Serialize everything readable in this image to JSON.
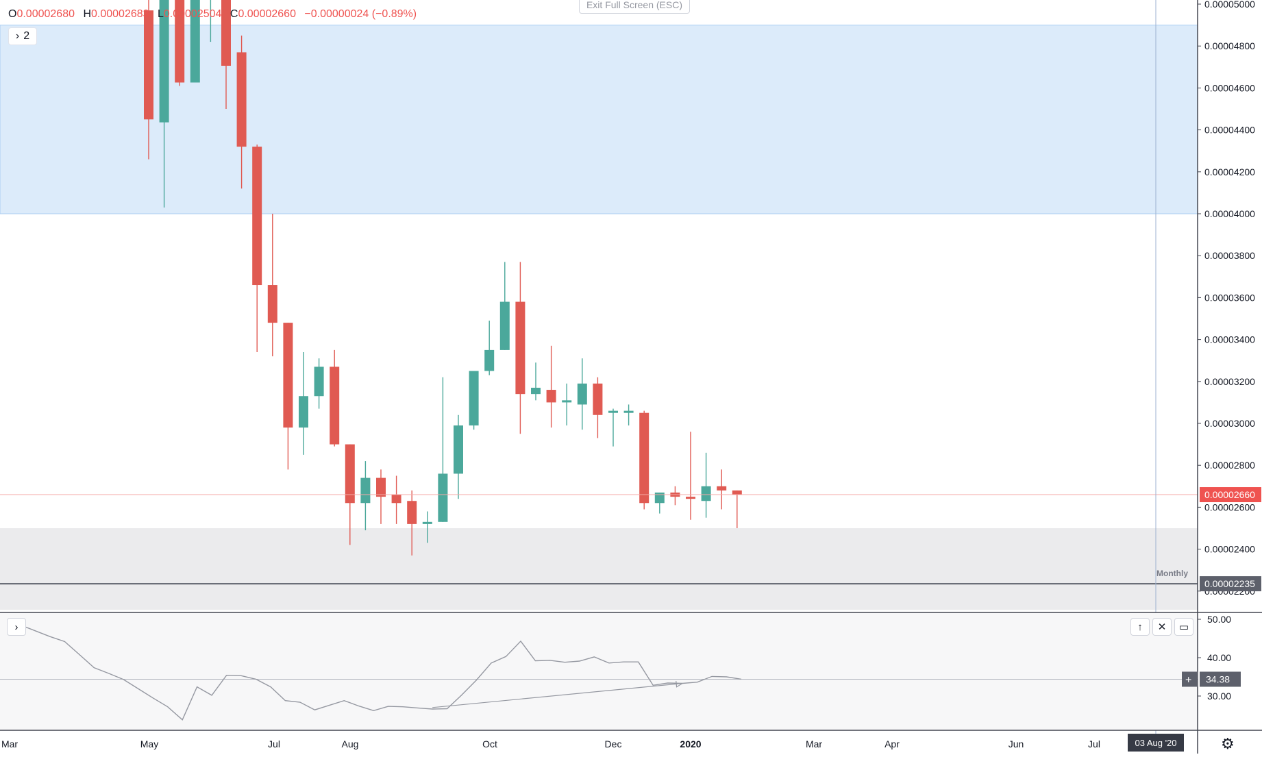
{
  "header": {
    "ohlc": [
      {
        "key": "O",
        "value": "0.00002680"
      },
      {
        "key": "H",
        "value": "0.00002683"
      },
      {
        "key": "L",
        "value": "0.00002504"
      },
      {
        "key": "C",
        "value": "0.00002660"
      }
    ],
    "change": "−0.00000024 (−0.89%)",
    "exit_fullscreen_label": "Exit Full Screen (ESC)",
    "series_toggle_label": "2",
    "interval_label": "Monthly"
  },
  "colors": {
    "up": "#26a69a",
    "up_body": "#4ba89b",
    "down": "#ef5350",
    "down_body": "#e05a52",
    "zone_blue": "#dcebfa",
    "zone_grey": "#ebebed",
    "osc_line": "#9598a1",
    "axis_text": "#131722"
  },
  "chart_data": [
    {
      "type": "candlestick",
      "price_axis_labels": [
        "0.00005000",
        "0.00004800",
        "0.00004600",
        "0.00004400",
        "0.00004200",
        "0.00004000",
        "0.00003800",
        "0.00003600",
        "0.00003400",
        "0.00003200",
        "0.00003000",
        "0.00002800",
        "0.00002600",
        "0.00002400",
        "0.00002200"
      ],
      "price_axis_ticks": [
        5e-05,
        4.8e-05,
        4.6e-05,
        4.4e-05,
        4.2e-05,
        4e-05,
        3.8e-05,
        3.6e-05,
        3.4e-05,
        3.2e-05,
        3e-05,
        2.8e-05,
        2.6e-05,
        2.4e-05,
        2.2e-05
      ],
      "time_axis_labels": [
        "Mar",
        "May",
        "Jul",
        "Aug",
        "Oct",
        "Dec",
        "2020",
        "Mar",
        "Apr",
        "Jun",
        "Jul"
      ],
      "current_price": 2.66e-05,
      "current_price_label": "0.00002660",
      "level_price": 2.235e-05,
      "level_price_label": "0.00002235",
      "crosshair_date_label": "03 Aug '20",
      "zones": [
        {
          "top": 4.9e-05,
          "bottom": 4e-05,
          "color": "blue"
        },
        {
          "top": 2.5e-05,
          "bottom": 2.11e-05,
          "color": "grey"
        }
      ],
      "candles": [
        {
          "o": 4.97e-05,
          "h": 5.1e-05,
          "l": 4.26e-05,
          "c": 4.45e-05
        },
        {
          "o": 4.45e-05,
          "h": 5.1e-05,
          "l": 4.03e-05,
          "c": 5.05e-05
        },
        {
          "o": 5.1e-05,
          "h": 5.2e-05,
          "l": 4.61e-05,
          "c": 4.69e-05
        },
        {
          "o": 4.69e-05,
          "h": 5.2e-05,
          "l": 4.66e-05,
          "c": 5.1e-05
        },
        {
          "o": 5.1e-05,
          "h": 5.2e-05,
          "l": 4.82e-05,
          "c": 5.1e-05
        },
        {
          "o": 5.1e-05,
          "h": 5.2e-05,
          "l": 4.5e-05,
          "c": 4.77e-05
        },
        {
          "o": 4.77e-05,
          "h": 4.85e-05,
          "l": 4.12e-05,
          "c": 4.32e-05
        },
        {
          "o": 4.32e-05,
          "h": 4.33e-05,
          "l": 3.34e-05,
          "c": 3.66e-05
        },
        {
          "o": 3.66e-05,
          "h": 4e-05,
          "l": 3.32e-05,
          "c": 3.48e-05
        },
        {
          "o": 3.48e-05,
          "h": 3.48e-05,
          "l": 2.78e-05,
          "c": 2.98e-05
        },
        {
          "o": 2.98e-05,
          "h": 3.34e-05,
          "l": 2.85e-05,
          "c": 3.13e-05
        },
        {
          "o": 3.13e-05,
          "h": 3.31e-05,
          "l": 3.07e-05,
          "c": 3.27e-05
        },
        {
          "o": 3.27e-05,
          "h": 3.35e-05,
          "l": 2.89e-05,
          "c": 2.9e-05
        },
        {
          "o": 2.9e-05,
          "h": 2.9e-05,
          "l": 2.42e-05,
          "c": 2.62e-05
        },
        {
          "o": 2.62e-05,
          "h": 2.82e-05,
          "l": 2.49e-05,
          "c": 2.74e-05
        },
        {
          "o": 2.74e-05,
          "h": 2.78e-05,
          "l": 2.52e-05,
          "c": 2.65e-05
        },
        {
          "o": 2.66e-05,
          "h": 2.75e-05,
          "l": 2.52e-05,
          "c": 2.62e-05
        },
        {
          "o": 2.63e-05,
          "h": 2.68e-05,
          "l": 2.37e-05,
          "c": 2.52e-05
        },
        {
          "o": 2.52e-05,
          "h": 2.58e-05,
          "l": 2.43e-05,
          "c": 2.53e-05
        },
        {
          "o": 2.53e-05,
          "h": 3.22e-05,
          "l": 2.53e-05,
          "c": 2.76e-05
        },
        {
          "o": 2.76e-05,
          "h": 3.04e-05,
          "l": 2.64e-05,
          "c": 2.99e-05
        },
        {
          "o": 2.99e-05,
          "h": 3.25e-05,
          "l": 2.97e-05,
          "c": 3.25e-05
        },
        {
          "o": 3.25e-05,
          "h": 3.49e-05,
          "l": 3.23e-05,
          "c": 3.35e-05
        },
        {
          "o": 3.35e-05,
          "h": 3.77e-05,
          "l": 3.35e-05,
          "c": 3.58e-05
        },
        {
          "o": 3.58e-05,
          "h": 3.77e-05,
          "l": 2.95e-05,
          "c": 3.14e-05
        },
        {
          "o": 3.14e-05,
          "h": 3.29e-05,
          "l": 3.11e-05,
          "c": 3.17e-05
        },
        {
          "o": 3.16e-05,
          "h": 3.37e-05,
          "l": 2.98e-05,
          "c": 3.1e-05
        },
        {
          "o": 3.1e-05,
          "h": 3.19e-05,
          "l": 2.99e-05,
          "c": 3.11e-05
        },
        {
          "o": 3.09e-05,
          "h": 3.31e-05,
          "l": 2.97e-05,
          "c": 3.19e-05
        },
        {
          "o": 3.19e-05,
          "h": 3.22e-05,
          "l": 2.93e-05,
          "c": 3.04e-05
        },
        {
          "o": 3.05e-05,
          "h": 3.07e-05,
          "l": 2.89e-05,
          "c": 3.06e-05
        },
        {
          "o": 3.05e-05,
          "h": 3.09e-05,
          "l": 2.99e-05,
          "c": 3.06e-05
        },
        {
          "o": 3.05e-05,
          "h": 3.06e-05,
          "l": 2.59e-05,
          "c": 2.62e-05
        },
        {
          "o": 2.62e-05,
          "h": 2.67e-05,
          "l": 2.57e-05,
          "c": 2.67e-05
        },
        {
          "o": 2.67e-05,
          "h": 2.7e-05,
          "l": 2.61e-05,
          "c": 2.65e-05
        },
        {
          "o": 2.65e-05,
          "h": 2.96e-05,
          "l": 2.54e-05,
          "c": 2.64e-05
        },
        {
          "o": 2.63e-05,
          "h": 2.86e-05,
          "l": 2.55e-05,
          "c": 2.7e-05
        },
        {
          "o": 2.7e-05,
          "h": 2.78e-05,
          "l": 2.59e-05,
          "c": 2.68e-05
        },
        {
          "o": 2.68e-05,
          "h": 2.68e-05,
          "l": 2.5e-05,
          "c": 2.66e-05
        }
      ]
    },
    {
      "type": "line",
      "axis_labels": [
        "50.00",
        "40.00",
        "30.00"
      ],
      "axis_ticks": [
        50,
        40,
        30
      ],
      "ylim": [
        22,
        52
      ],
      "current_value": 34.38,
      "current_value_label": "34.38",
      "values": [
        48.5,
        47,
        45.5,
        44.2,
        40.8,
        37.4,
        35.9,
        34.3,
        31.9,
        29.5,
        27.2,
        23.8,
        32.4,
        30.2,
        35.4,
        35.3,
        34.4,
        32.4,
        28.8,
        28.4,
        26.4,
        27.6,
        28.8,
        27.4,
        26.2,
        27.3,
        27.2,
        26.9,
        26.6,
        26.7,
        30.3,
        34.2,
        38.6,
        40.3,
        44.3,
        39.2,
        39.3,
        38.8,
        39.1,
        40.2,
        38.6,
        38.9,
        38.9,
        32.8,
        33.4,
        33.3,
        33.6,
        35.1,
        35.0,
        34.4
      ],
      "divergence_line": {
        "start": [
          28,
          27.0
        ],
        "end": [
          45,
          33.3
        ]
      }
    }
  ]
}
